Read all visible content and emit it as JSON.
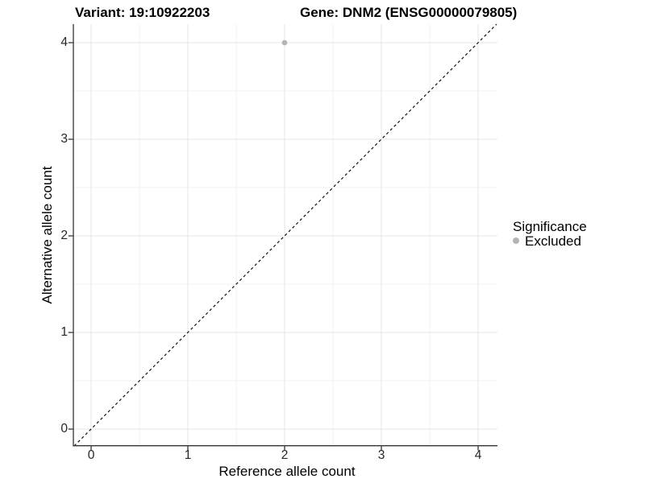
{
  "header": {
    "variant_title": "Variant: 19:10922203",
    "gene_title": "Gene: DNM2 (ENSG00000079805)"
  },
  "axes": {
    "x_label": "Reference allele count",
    "y_label": "Alternative allele count",
    "x_tick_labels": [
      "0",
      "1",
      "2",
      "3",
      "4"
    ],
    "y_tick_labels_top_to_bottom": [
      "4",
      "3",
      "2",
      "1",
      "0"
    ]
  },
  "legend": {
    "title": "Significance",
    "items": [
      {
        "label": "Excluded",
        "color": "#b4b4b4"
      }
    ]
  },
  "chart_data": {
    "type": "scatter",
    "title": "Variant: 19:10922203   Gene: DNM2 (ENSG00000079805)",
    "xlabel": "Reference allele count",
    "ylabel": "Alternative allele count",
    "xlim": [
      -0.2,
      4.2
    ],
    "ylim": [
      -0.2,
      4.2
    ],
    "x_ticks": [
      0,
      1,
      2,
      3,
      4
    ],
    "y_ticks": [
      0,
      1,
      2,
      3,
      4
    ],
    "grid": "major and minor gridlines, light gray, white background",
    "legend_position": "right",
    "series": [
      {
        "name": "Excluded",
        "color": "#b4b4b4",
        "points": [
          {
            "x": 2,
            "y": 4
          }
        ]
      }
    ],
    "reference_line": {
      "equation": "y = x",
      "style": "dashed",
      "color": "#000000"
    }
  },
  "colors": {
    "point": "#b4b4b4",
    "grid_major": "#e4e4e4",
    "grid_minor": "#f1f1f1",
    "axis_line": "#333333",
    "text": "#000000"
  }
}
